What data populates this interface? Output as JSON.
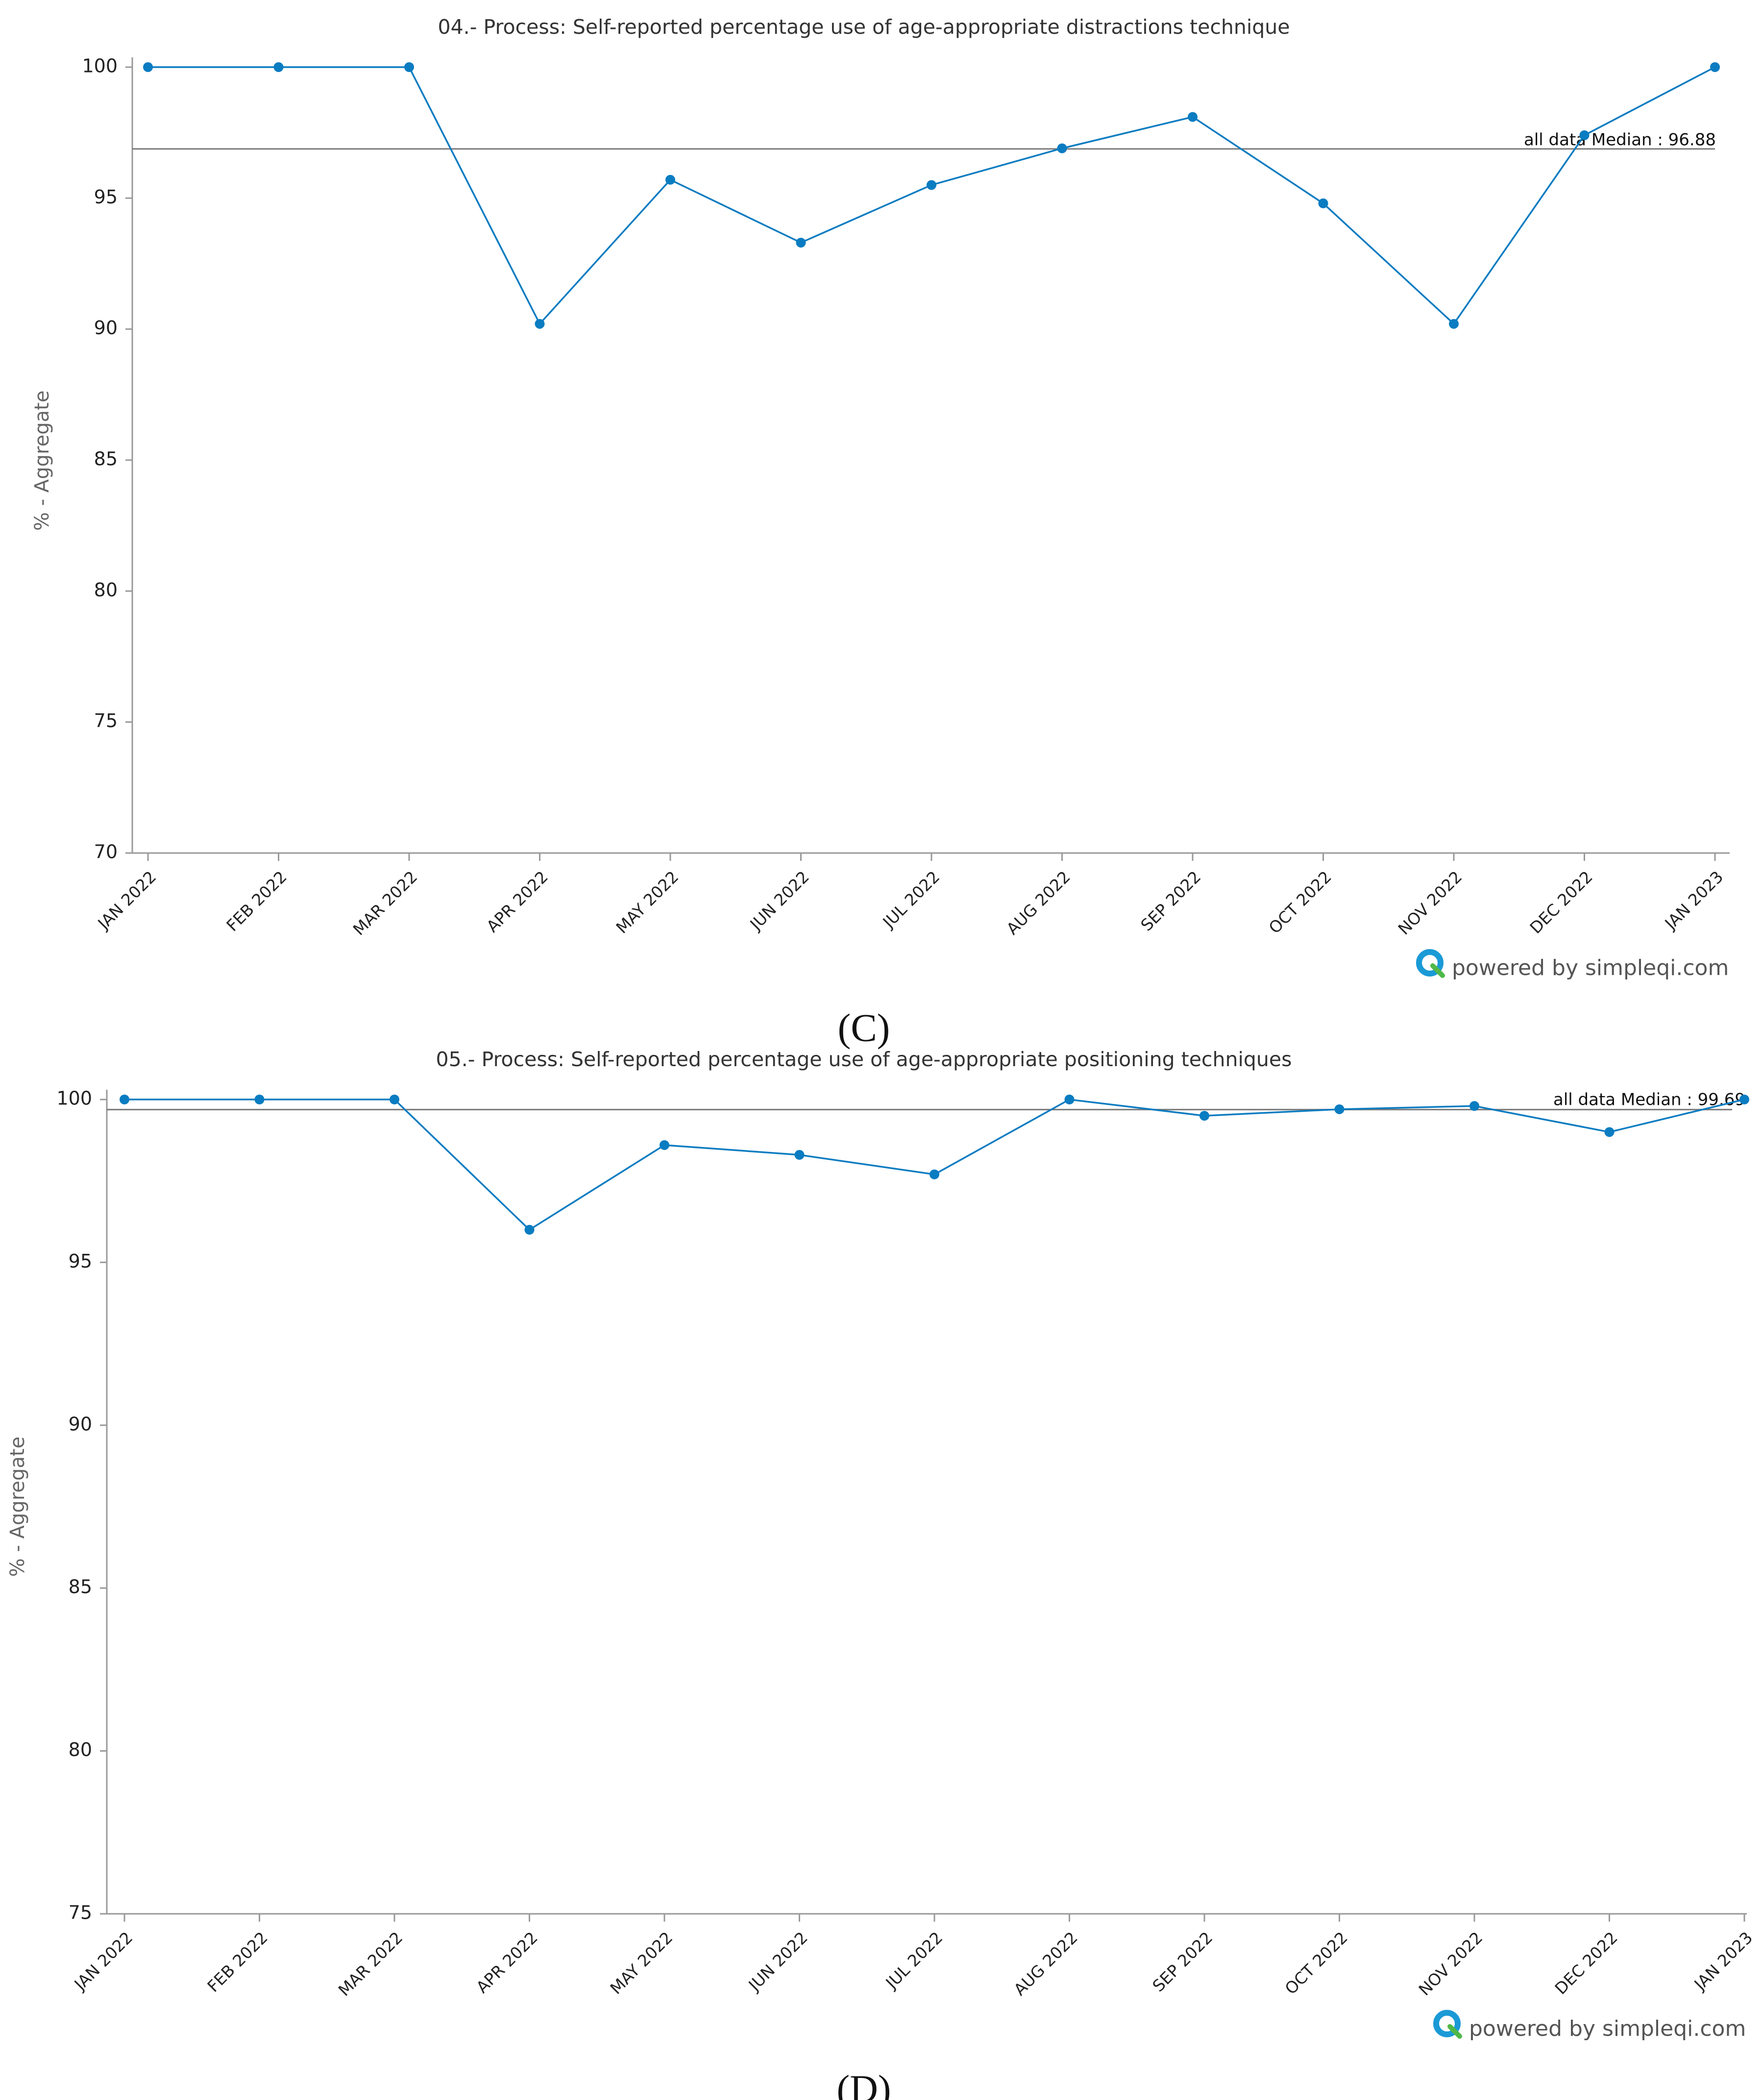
{
  "chart_data": [
    {
      "type": "line",
      "title": "04.- Process: Self-reported percentage use of age-appropriate distractions technique",
      "ylabel": "% - Aggregate",
      "xlabel": "",
      "ylim": [
        70,
        100
      ],
      "yticks": [
        70,
        75,
        80,
        85,
        90,
        95,
        100
      ],
      "categories": [
        "JAN 2022",
        "FEB 2022",
        "MAR 2022",
        "APR 2022",
        "MAY 2022",
        "JUN 2022",
        "JUL 2022",
        "AUG 2022",
        "SEP 2022",
        "OCT 2022",
        "NOV 2022",
        "DEC 2022",
        "JAN 2023"
      ],
      "series": [
        {
          "name": "Aggregate",
          "color": "#0a7cc1",
          "values": [
            100,
            100,
            100,
            90.2,
            95.7,
            93.3,
            95.5,
            96.9,
            98.1,
            94.8,
            90.2,
            97.4,
            100
          ]
        }
      ],
      "median": {
        "label": "all data Median : 96.88",
        "value": 96.88,
        "color": "#888888"
      },
      "branding": "powered by simpleqi.com",
      "panel_label": "(C)"
    },
    {
      "type": "line",
      "title": "05.- Process: Self-reported percentage use of age-appropriate positioning techniques",
      "ylabel": "% - Aggregate",
      "xlabel": "",
      "ylim": [
        75,
        100
      ],
      "yticks": [
        75,
        80,
        85,
        90,
        95,
        100
      ],
      "categories": [
        "JAN 2022",
        "FEB 2022",
        "MAR 2022",
        "APR 2022",
        "MAY 2022",
        "JUN 2022",
        "JUL 2022",
        "AUG 2022",
        "SEP 2022",
        "OCT 2022",
        "NOV 2022",
        "DEC 2022",
        "JAN 2023"
      ],
      "series": [
        {
          "name": "Aggregate",
          "color": "#0a7cc1",
          "values": [
            100,
            100,
            100,
            96.0,
            98.6,
            98.3,
            97.7,
            100,
            99.5,
            99.7,
            99.8,
            99.0,
            100
          ]
        }
      ],
      "median": {
        "label": "all data Median : 99.69",
        "value": 99.69,
        "color": "#888888"
      },
      "branding": "powered by simpleqi.com",
      "panel_label": "(D)"
    }
  ],
  "colors": {
    "line": "#0a7cc1",
    "axis": "#999999",
    "logo_blue": "#1a9ad6",
    "logo_green": "#4fb848"
  }
}
